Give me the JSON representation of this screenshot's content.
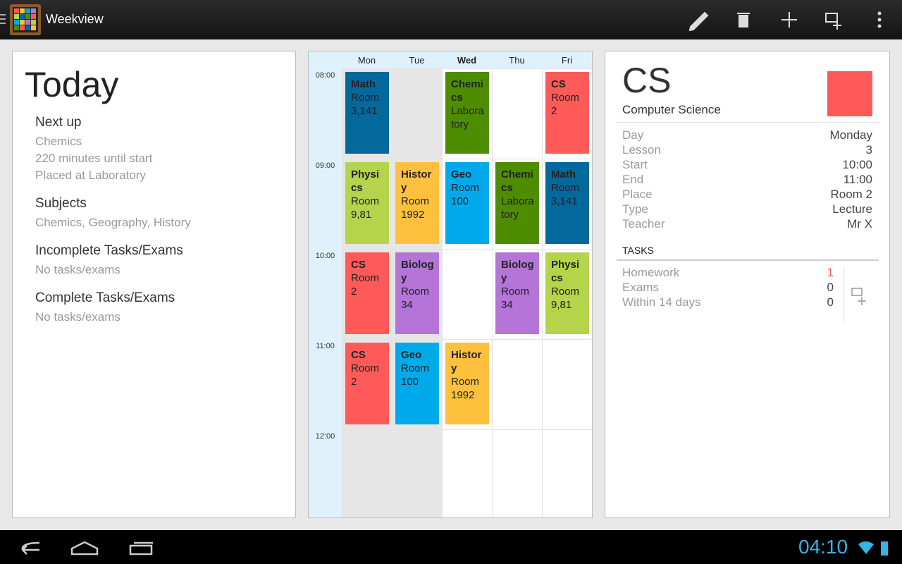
{
  "action_bar": {
    "title": "Weekview"
  },
  "today": {
    "title": "Today",
    "sections": [
      {
        "heading": "Next up",
        "lines": [
          "Chemics",
          "220 minutes until start",
          "Placed at Laboratory"
        ]
      },
      {
        "heading": "Subjects",
        "lines": [
          "Chemics, Geography, History"
        ]
      },
      {
        "heading": "Incomplete Tasks/Exams",
        "lines": [
          "No tasks/exams"
        ]
      },
      {
        "heading": "Complete Tasks/Exams",
        "lines": [
          "No tasks/exams"
        ]
      }
    ]
  },
  "week": {
    "days": [
      "Mon",
      "Tue",
      "Wed",
      "Thu",
      "Fri"
    ],
    "times": [
      "08:00",
      "09:00",
      "10:00",
      "11:00",
      "12:00"
    ],
    "grid": [
      [
        {
          "subject": "Math",
          "room": "Room 3,141",
          "color": "#03689c"
        },
        null,
        {
          "subject": "Chemics",
          "room": "Laboratory",
          "color": "#4e8c00"
        },
        null,
        {
          "subject": "CS",
          "room": "Room 2",
          "color": "#ff5a5a"
        }
      ],
      [
        {
          "subject": "Physics",
          "room": "Room 9,81",
          "color": "#b5d34b"
        },
        {
          "subject": "History",
          "room": "Room 1992",
          "color": "#ffc13d"
        },
        {
          "subject": "Geo",
          "room": "Room 100",
          "color": "#00aaea"
        },
        {
          "subject": "Chemics",
          "room": "Laboratory",
          "color": "#4e8c00"
        },
        {
          "subject": "Math",
          "room": "Room 3,141",
          "color": "#03689c"
        }
      ],
      [
        {
          "subject": "CS",
          "room": "Room 2",
          "color": "#ff5a5a"
        },
        {
          "subject": "Biology",
          "room": "Room 34",
          "color": "#b474d8"
        },
        null,
        {
          "subject": "Biology",
          "room": "Room 34",
          "color": "#b474d8"
        },
        {
          "subject": "Physics",
          "room": "Room 9,81",
          "color": "#b5d34b"
        }
      ],
      [
        {
          "subject": "CS",
          "room": "Room 2",
          "color": "#ff5a5a"
        },
        {
          "subject": "Geo",
          "room": "Room 100",
          "color": "#00aaea"
        },
        {
          "subject": "History",
          "room": "Room 1992",
          "color": "#ffc13d"
        },
        null,
        null
      ],
      [
        null,
        null,
        null,
        null,
        null
      ]
    ]
  },
  "detail": {
    "title": "CS",
    "subtitle": "Computer Science",
    "color": "#ff5a5a",
    "fields": [
      [
        "Day",
        "Monday"
      ],
      [
        "Lesson",
        "3"
      ],
      [
        "Start",
        "10:00"
      ],
      [
        "End",
        "11:00"
      ],
      [
        "Place",
        "Room 2"
      ],
      [
        "Type",
        "Lecture"
      ],
      [
        "Teacher",
        "Mr X"
      ]
    ],
    "tasks_header": "TASKS",
    "tasks": [
      [
        "Homework",
        "1"
      ],
      [
        "Exams",
        "0"
      ],
      [
        "Within 14 days",
        "0"
      ]
    ]
  },
  "status_bar": {
    "time": "04:10"
  }
}
